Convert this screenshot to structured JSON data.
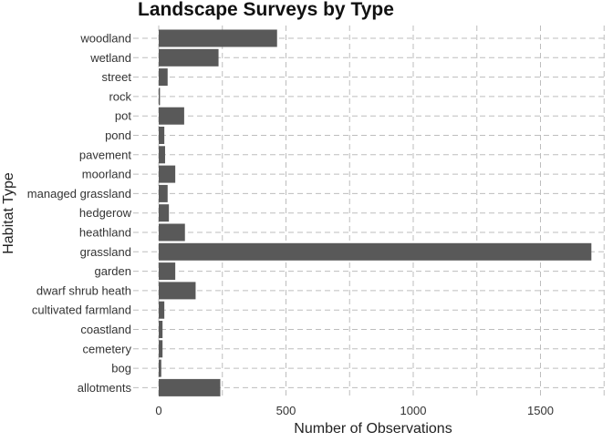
{
  "chart_data": {
    "type": "bar",
    "orientation": "horizontal",
    "title": "Landscape Surveys by Type",
    "xlabel": "Number of Observations",
    "ylabel": "Habitat Type",
    "xlim": [
      0,
      1750
    ],
    "xticks": [
      0,
      500,
      1000,
      1500
    ],
    "xtick_labels": [
      "0",
      "500",
      "1000",
      "1500"
    ],
    "grid": true,
    "grid_style": "dashed",
    "bar_color": "#595959",
    "categories": [
      "woodland",
      "wetland",
      "street",
      "rock",
      "pot",
      "pond",
      "pavement",
      "moorland",
      "managed grassland",
      "hedgerow",
      "heathland",
      "grassland",
      "garden",
      "dwarf shrub heath",
      "cultivated farmland",
      "coastland",
      "cemetery",
      "bog",
      "allotments"
    ],
    "values": [
      465,
      235,
      35,
      5,
      100,
      22,
      25,
      65,
      35,
      40,
      103,
      1700,
      65,
      145,
      22,
      15,
      15,
      10,
      242
    ]
  }
}
